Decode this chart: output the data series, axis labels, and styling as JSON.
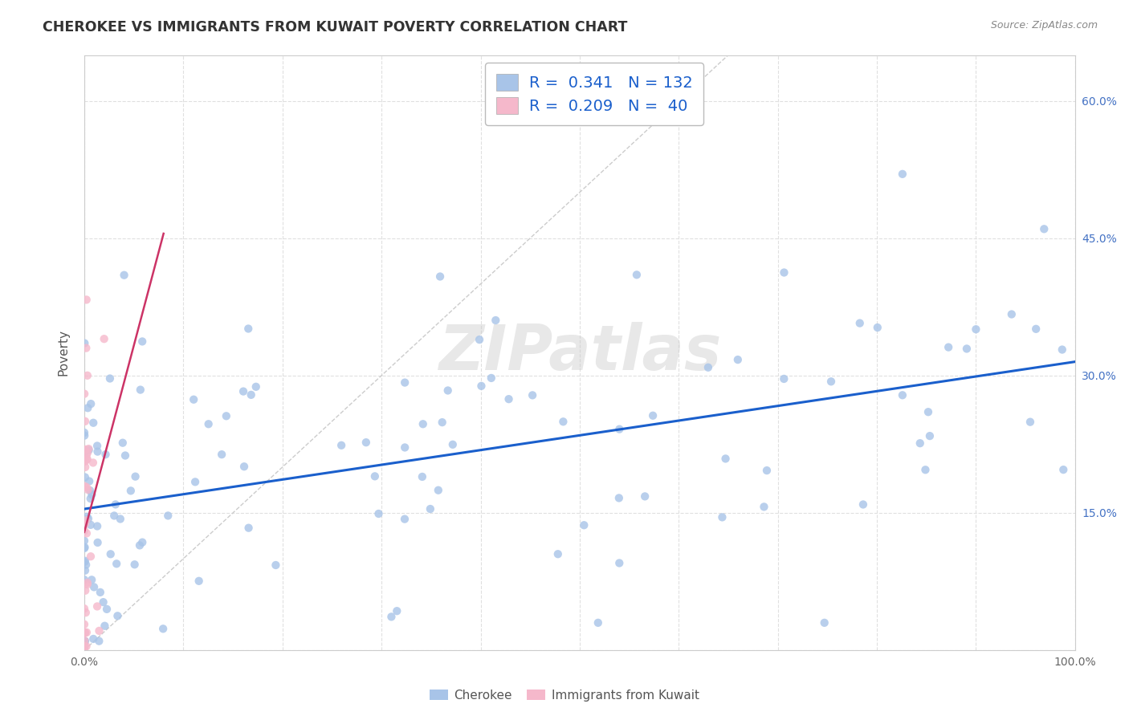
{
  "title": "CHEROKEE VS IMMIGRANTS FROM KUWAIT POVERTY CORRELATION CHART",
  "source": "Source: ZipAtlas.com",
  "ylabel": "Poverty",
  "xlim": [
    0,
    1.0
  ],
  "ylim": [
    0,
    0.65
  ],
  "cherokee_R": 0.341,
  "cherokee_N": 132,
  "kuwait_R": 0.209,
  "kuwait_N": 40,
  "cherokee_color": "#a8c4e8",
  "kuwait_color": "#f5b8cb",
  "trendline_cherokee_color": "#1a5fcc",
  "trendline_kuwait_color": "#cc3366",
  "diagonal_color": "#cccccc",
  "watermark": "ZIPatlas",
  "ytick_color": "#4472c4",
  "xtick_color": "#666666",
  "title_color": "#333333",
  "source_color": "#888888",
  "grid_color": "#e0e0e0",
  "legend_text_color": "#1a5fcc"
}
